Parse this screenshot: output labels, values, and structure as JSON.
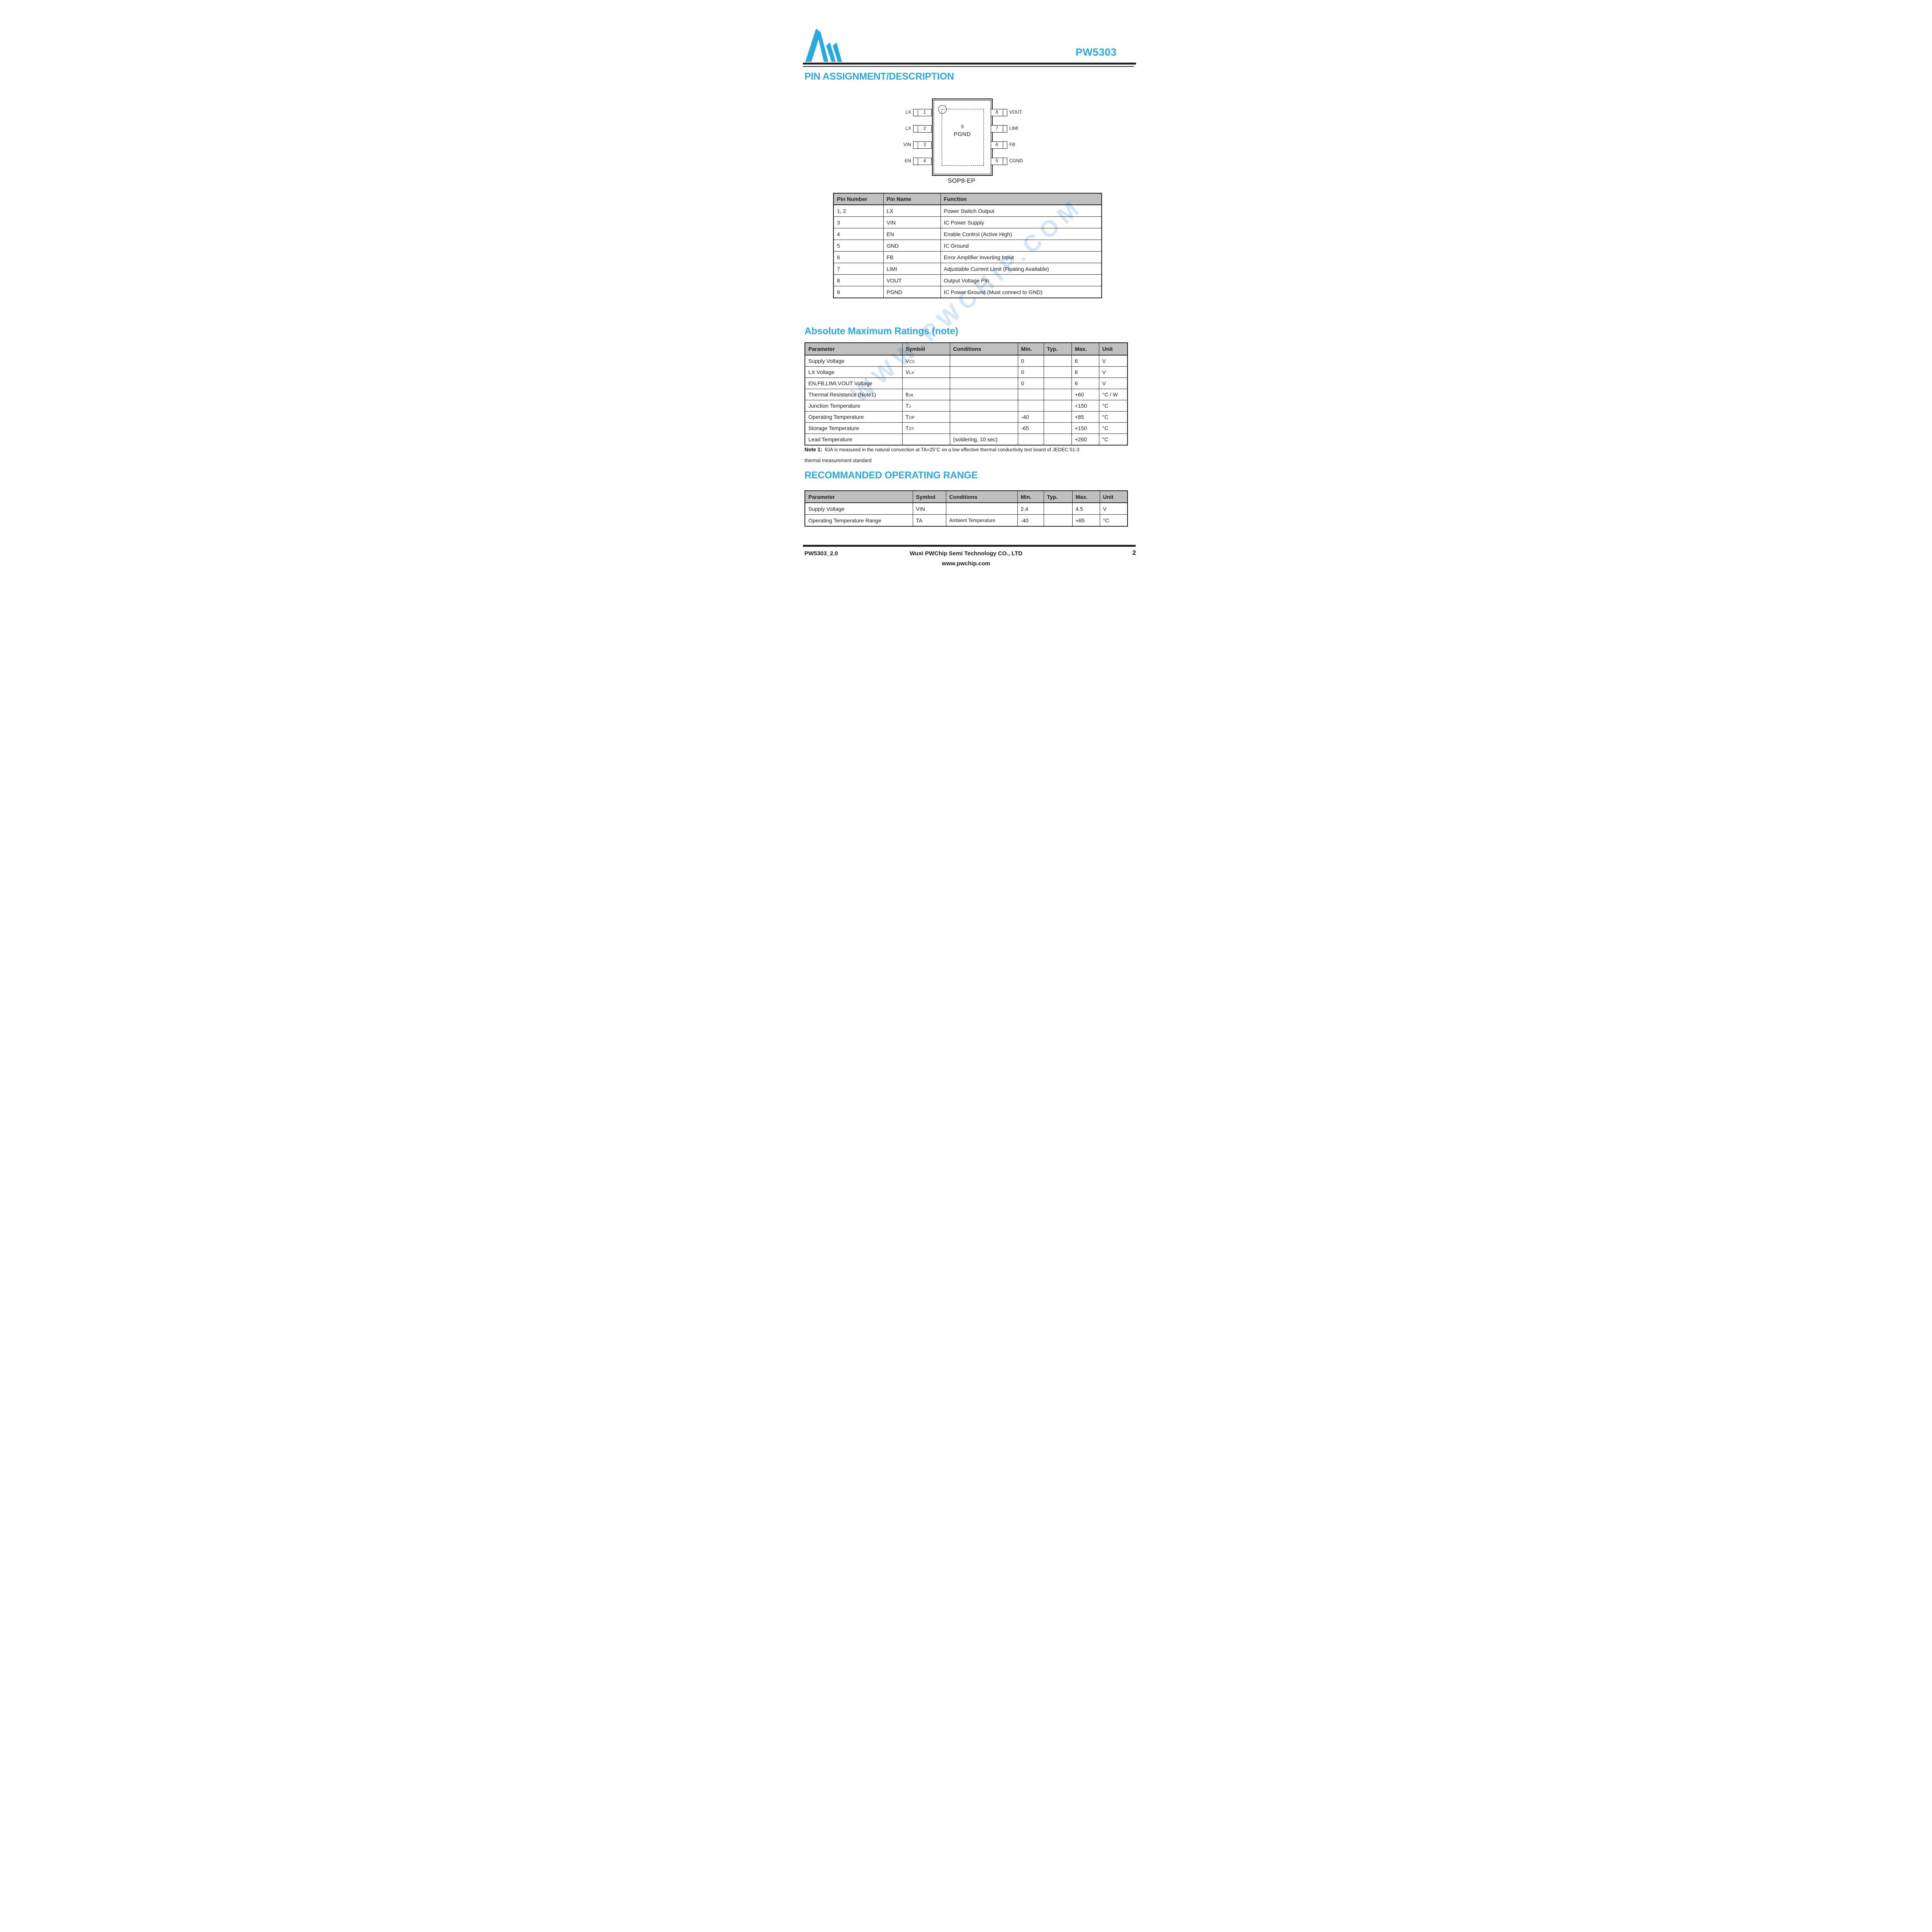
{
  "header": {
    "product": "PW5303"
  },
  "watermark": "WWW.PWCHIP.COM",
  "pin_section": {
    "title": "PIN ASSIGNMENT/DESCRIPTION",
    "package_label": "SOP8-EP",
    "diagram": {
      "center_number": "9",
      "center_name": "PGND",
      "left_pins": [
        {
          "label": "LX",
          "number": "1"
        },
        {
          "label": "LX",
          "number": "2"
        },
        {
          "label": "VIN",
          "number": "3"
        },
        {
          "label": "EN",
          "number": "4"
        }
      ],
      "right_pins": [
        {
          "number": "8",
          "label": "VOUT"
        },
        {
          "number": "7",
          "label": "LIMI"
        },
        {
          "number": "6",
          "label": "FB"
        },
        {
          "number": "5",
          "label": "CGND"
        }
      ]
    },
    "table": {
      "headers": [
        "Pin Number",
        "Pin Name",
        "Function"
      ],
      "rows": [
        [
          "1, 2",
          "LX",
          "Power Switch Output"
        ],
        [
          "3",
          "VIN",
          "IC Power Supply"
        ],
        [
          "4",
          "EN",
          "Enable Control (Active High)"
        ],
        [
          "5",
          "GND",
          "IC Ground"
        ],
        [
          "6",
          "FB",
          "Error Amplifier Inverting Input"
        ],
        [
          "7",
          "LIMI",
          "Adjustable Current Limit (Floating Available)"
        ],
        [
          "8",
          "VOUT",
          "Output Voltage Pin"
        ],
        [
          "9",
          "PGND",
          "IC Power Ground (Must connect to GND)"
        ]
      ]
    }
  },
  "abs_max": {
    "title": "Absolute Maximum Ratings (note)",
    "headers": [
      "Parameter",
      "Symbol",
      "Conditions",
      "Min.",
      "Typ.",
      "Max.",
      "Unit"
    ],
    "rows": [
      {
        "parameter": "Supply Voltage",
        "symbol": {
          "base": "V",
          "sub": "CC"
        },
        "conditions": "",
        "min": "0",
        "typ": "",
        "max": "6",
        "unit": "V"
      },
      {
        "parameter": "LX Voltage",
        "symbol": {
          "base": "V",
          "sub": "LX"
        },
        "conditions": "",
        "min": "0",
        "typ": "",
        "max": "6",
        "unit": "V"
      },
      {
        "parameter": "EN,FB,LIMI,VOUT Voltage",
        "symbol": "",
        "conditions": "",
        "min": "0",
        "typ": "",
        "max": "6",
        "unit": "V"
      },
      {
        "parameter": "Thermal Resistance (Note1)",
        "symbol": {
          "base": "θ",
          "sub": "JA"
        },
        "conditions": "",
        "min": "",
        "typ": "",
        "max": "+60",
        "unit": "°C / W"
      },
      {
        "parameter": "Junction Temperature",
        "symbol": {
          "base": "T",
          "sub": "J"
        },
        "conditions": "",
        "min": "",
        "typ": "",
        "max": "+150",
        "unit": "°C"
      },
      {
        "parameter": "Operating Temperature",
        "symbol": {
          "base": "T",
          "sub": "OP"
        },
        "conditions": "",
        "min": "-40",
        "typ": "",
        "max": "+85",
        "unit": "°C"
      },
      {
        "parameter": "Storage Temperature",
        "symbol": {
          "base": "T",
          "sub": "ST"
        },
        "conditions": "",
        "min": "-65",
        "typ": "",
        "max": "+150",
        "unit": "°C"
      },
      {
        "parameter": "Lead Temperature",
        "symbol": "",
        "conditions": "(soldering, 10 sec)",
        "min": "",
        "typ": "",
        "max": "+260",
        "unit": "°C"
      }
    ],
    "note_label": "Note 1:",
    "note_line1": "θJA is measured in the natural convection at TA=25°C on a low effective thermal conductivity test board of JEDEC 51-3",
    "note_line2": "thermal measurement standard"
  },
  "rec_range": {
    "title": "RECOMMANDED OPERATING RANGE",
    "headers": [
      "Parameter",
      "Symbol",
      "Conditions",
      "Min.",
      "Typ.",
      "Max.",
      "Unit"
    ],
    "rows": [
      {
        "parameter": "Supply Voltage",
        "symbol": "VIN",
        "conditions": "",
        "min": "2.4",
        "typ": "",
        "max": "4.5",
        "unit": "V"
      },
      {
        "parameter": "Operating Temperature Range",
        "symbol": "TA",
        "conditions": "Ambient Temperature",
        "min": "-40",
        "typ": "",
        "max": "+85",
        "unit": "°C"
      }
    ]
  },
  "footer": {
    "doc_id": "PW5303_2.0",
    "company": "Wuxi PWChip Semi Technology CO., LTD",
    "page_number": "2",
    "website": "www.pwchip.com"
  },
  "colors": {
    "accent": "#29a9e1",
    "table_header_bg": "#c0c0c0",
    "watermark": "#cde4f7",
    "rule": "#1f1f1f"
  }
}
